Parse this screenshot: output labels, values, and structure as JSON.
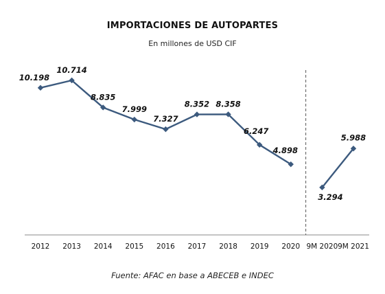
{
  "chart_data": {
    "type": "line",
    "title": "IMPORTACIONES DE AUTOPARTES",
    "subtitle": "En millones de USD CIF",
    "source": "Fuente: AFAC en base a ABECEB e INDEC",
    "categories": [
      "2012",
      "2013",
      "2014",
      "2015",
      "2016",
      "2017",
      "2018",
      "2019",
      "2020",
      "9M 2020",
      "9M 2021"
    ],
    "series": [
      {
        "segment": "annual",
        "x": [
          "2012",
          "2013",
          "2014",
          "2015",
          "2016",
          "2017",
          "2018",
          "2019",
          "2020"
        ],
        "values": [
          10198,
          10714,
          8835,
          7999,
          7327,
          8352,
          8358,
          6247,
          4898
        ],
        "labels": [
          "10.198",
          "10.714",
          "8.835",
          "7.999",
          "7.327",
          "8.352",
          "8.358",
          "6.247",
          "4.898"
        ]
      },
      {
        "segment": "nine-months",
        "x": [
          "9M 2020",
          "9M 2021"
        ],
        "values": [
          3294,
          5988
        ],
        "labels": [
          "3.294",
          "5.988"
        ]
      }
    ],
    "ylim": [
      0,
      12000
    ],
    "divider_between": [
      "2020",
      "9M 2020"
    ],
    "grid": false,
    "line_color": "#3c5a7e"
  }
}
